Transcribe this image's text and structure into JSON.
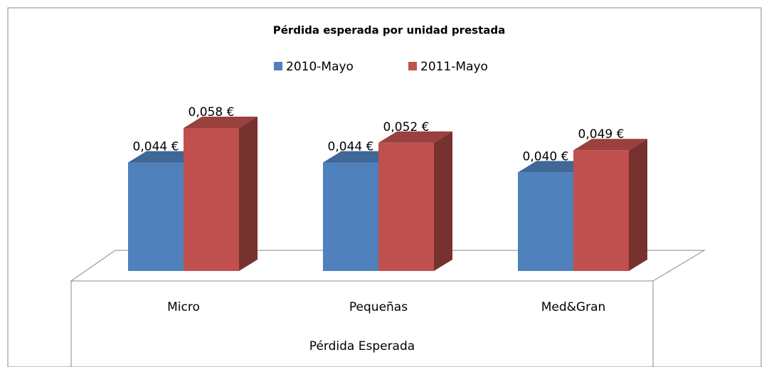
{
  "chart_data": {
    "type": "bar3d",
    "title": "Pérdida esperada por unidad prestada",
    "x_label": "Pérdida Esperada",
    "categories": [
      "Micro",
      "Pequeñas",
      "Med&Gran"
    ],
    "series": [
      {
        "name": "2010-Mayo",
        "color": "#4f81bd",
        "values": [
          0.044,
          0.044,
          0.04
        ],
        "value_labels": [
          "0,044 €",
          "0,044 €",
          "0,040 €"
        ]
      },
      {
        "name": "2011-Mayo",
        "color": "#c0504d",
        "values": [
          0.058,
          0.052,
          0.049
        ],
        "value_labels": [
          "0,058 €",
          "0,052 €",
          "0,049 €"
        ]
      }
    ],
    "legend": "top"
  }
}
